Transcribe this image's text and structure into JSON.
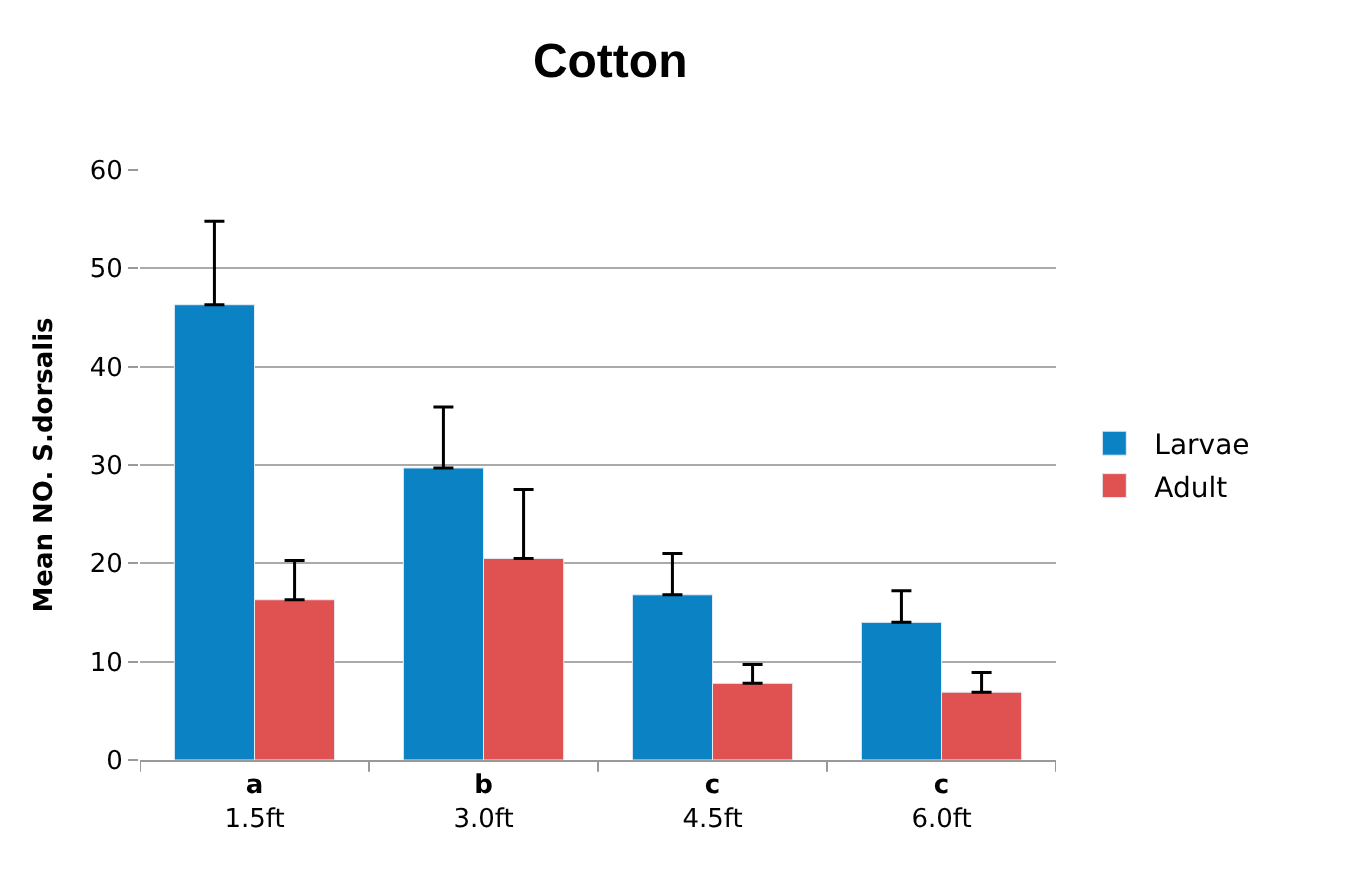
{
  "chart_data": {
    "type": "bar",
    "title": "Cotton",
    "ylabel": "Mean NO. S.dorsalis",
    "categories": [
      "a\n1.5ft",
      "b\n3.0ft",
      "c\n4.5ft",
      "c\n6.0ft"
    ],
    "series": [
      {
        "name": "Larvae",
        "color": "#0a82c4",
        "values": [
          46.3,
          29.7,
          16.8,
          14.0
        ],
        "errors": [
          8.5,
          6.2,
          4.2,
          3.2
        ]
      },
      {
        "name": "Adult",
        "color": "#e05252",
        "values": [
          16.3,
          20.5,
          7.8,
          6.9
        ],
        "errors": [
          4.0,
          7.0,
          1.9,
          2.0
        ]
      }
    ],
    "ylim": [
      0,
      60
    ],
    "yticks": [
      0,
      10,
      20,
      30,
      40,
      50,
      60
    ],
    "grid": "y",
    "legend": "right"
  }
}
